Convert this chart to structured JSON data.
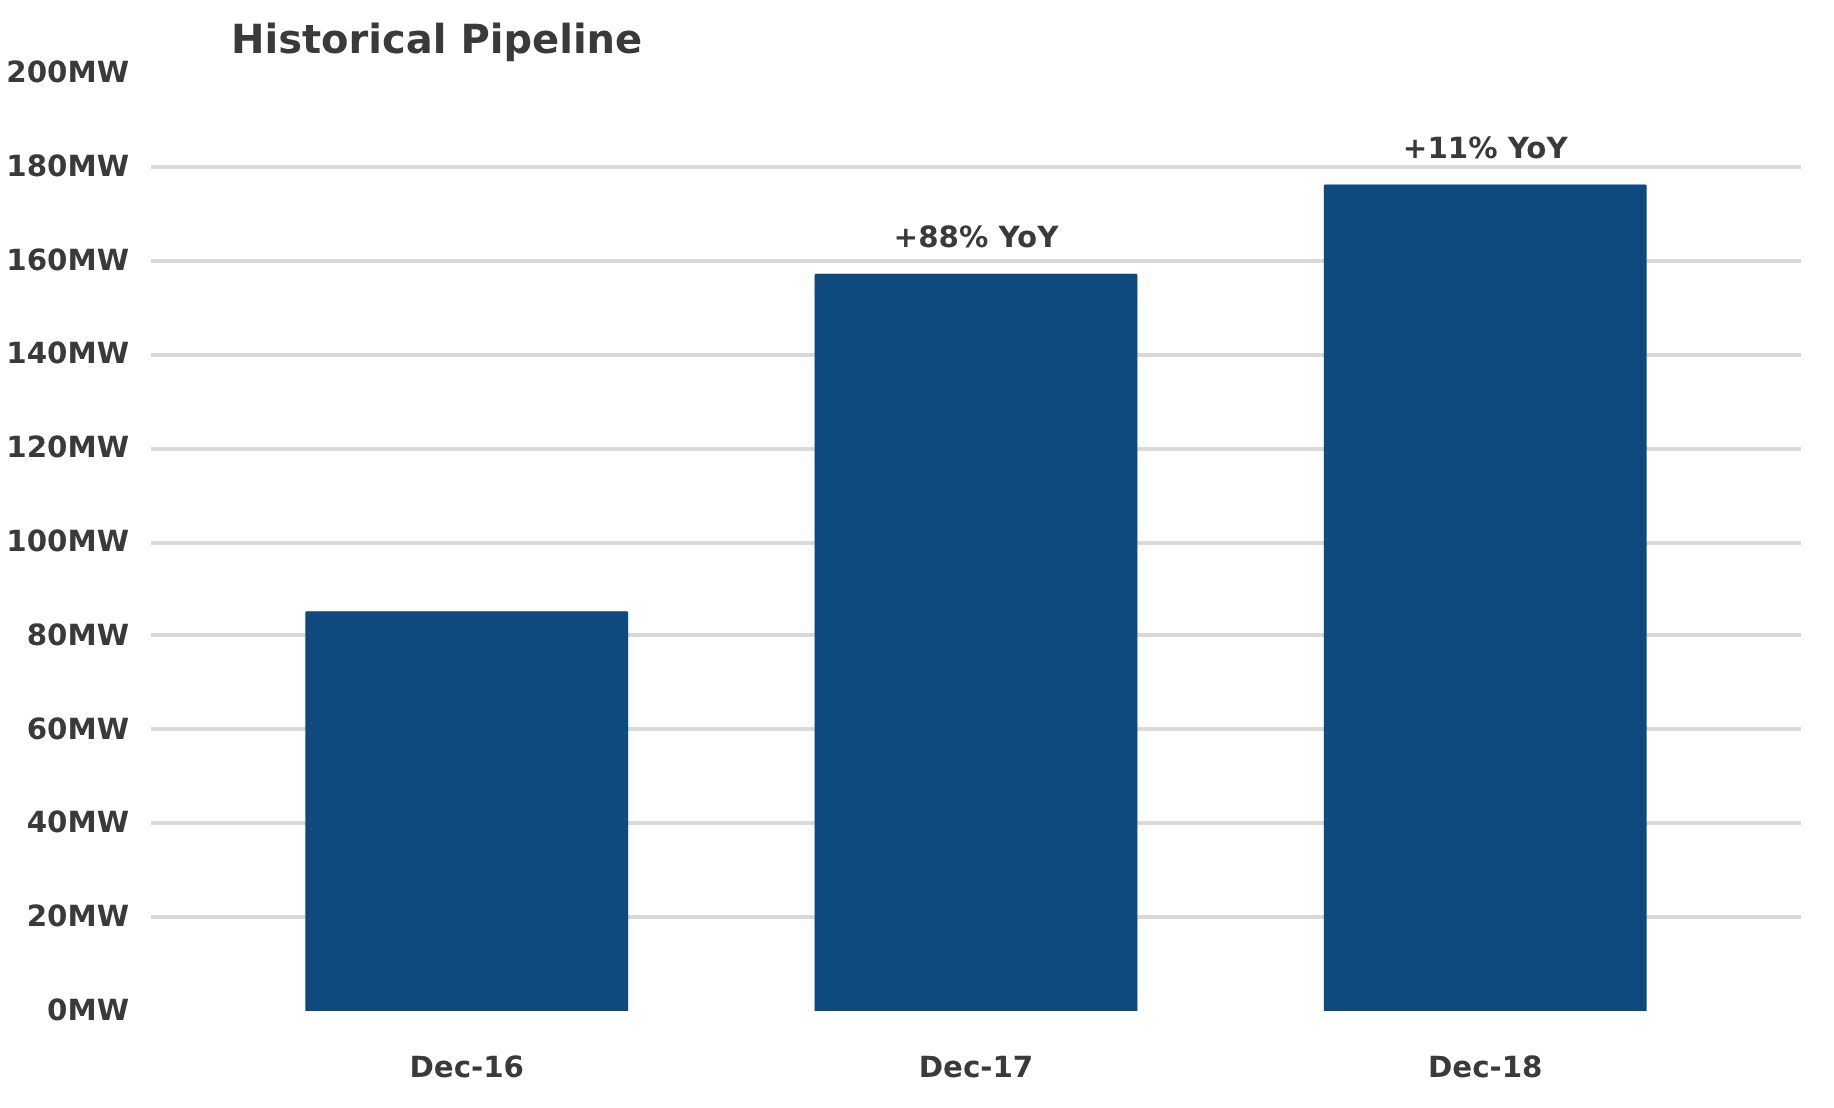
{
  "chart_data": {
    "type": "bar",
    "title": "Historical Pipeline",
    "categories": [
      "Dec-16",
      "Dec-17",
      "Dec-18"
    ],
    "values": [
      85,
      157,
      176
    ],
    "color": "#0e4a7e",
    "ylim": [
      0,
      200
    ],
    "yticks": [
      {
        "value": 0,
        "label": "0MW"
      },
      {
        "value": 20,
        "label": "20MW"
      },
      {
        "value": 40,
        "label": "40MW"
      },
      {
        "value": 60,
        "label": "60MW"
      },
      {
        "value": 80,
        "label": "80MW"
      },
      {
        "value": 100,
        "label": "100MW"
      },
      {
        "value": 120,
        "label": "120MW"
      },
      {
        "value": 140,
        "label": "140MW"
      },
      {
        "value": 160,
        "label": "160MW"
      },
      {
        "value": 180,
        "label": "180MW"
      },
      {
        "value": 200,
        "label": "200MW"
      }
    ],
    "grid": "y",
    "annotations": [
      {
        "text": "+88% YoY",
        "x": "Dec-17",
        "y": 157
      },
      {
        "text": "+11% YoY",
        "x": "Dec-18",
        "y": 176
      }
    ]
  }
}
